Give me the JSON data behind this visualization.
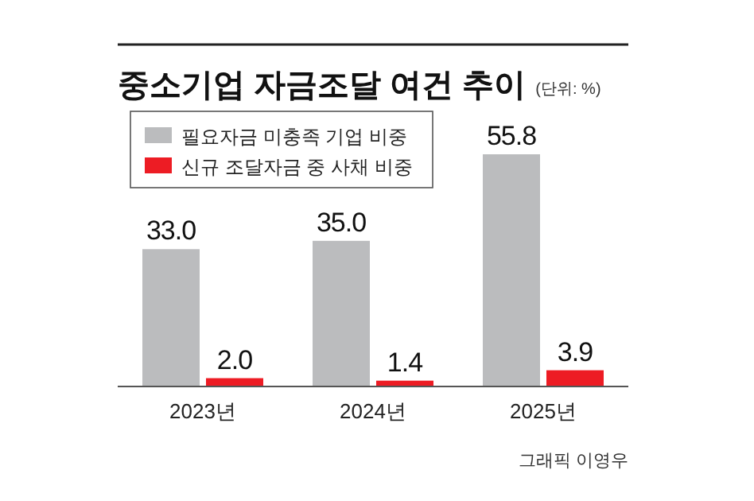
{
  "chart_data": {
    "type": "bar",
    "title": "중소기업 자금조달 여건 추이",
    "subtitle": "(단위: %)",
    "categories": [
      "2023년",
      "2024년",
      "2025년"
    ],
    "series": [
      {
        "name": "필요자금 미충족 기업 비중",
        "color": "#bbbcbe",
        "values": [
          33.0,
          35.0,
          55.8
        ],
        "value_labels": [
          "33.0",
          "35.0",
          "55.8"
        ]
      },
      {
        "name": "신규 조달자금 중 사채 비중",
        "color": "#ed1c24",
        "values": [
          2.0,
          1.4,
          3.9
        ],
        "value_labels": [
          "2.0",
          "1.4",
          "3.9"
        ]
      }
    ],
    "legend": "top left",
    "annotations": [
      "그래픽 이영우"
    ]
  }
}
